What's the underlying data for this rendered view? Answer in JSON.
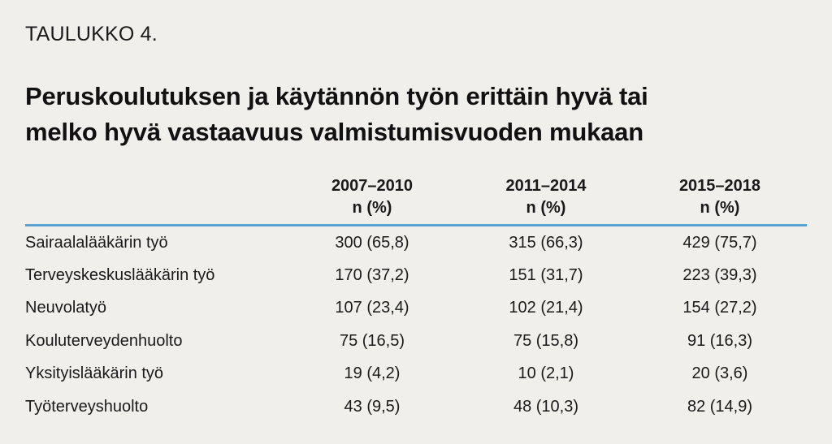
{
  "label": "TAULUKKO 4.",
  "title_line1": "Peruskoulutuksen ja käytännön työn erittäin hyvä tai",
  "title_line2": "melko hyvä vastaavuus valmistumisvuoden mukaan",
  "header": {
    "col1": {
      "period": "2007–2010",
      "unit": "n (%)"
    },
    "col2": {
      "period": "2011–2014",
      "unit": "n (%)"
    },
    "col3": {
      "period": "2015–2018",
      "unit": "n (%)"
    }
  },
  "rows": [
    {
      "label": "Sairaalalääkärin työ",
      "v1": "300 (65,8)",
      "v2": "315 (66,3)",
      "v3": "429 (75,7)"
    },
    {
      "label": "Terveyskeskuslääkärin työ",
      "v1": "170 (37,2)",
      "v2": "151 (31,7)",
      "v3": "223 (39,3)"
    },
    {
      "label": "Neuvolatyö",
      "v1": "107 (23,4)",
      "v2": "102 (21,4)",
      "v3": "154 (27,2)"
    },
    {
      "label": "Kouluterveydenhuolto",
      "v1": "75 (16,5)",
      "v2": "75 (15,8)",
      "v3": "91 (16,3)"
    },
    {
      "label": "Yksityislääkärin työ",
      "v1": "19 (4,2)",
      "v2": "10 (2,1)",
      "v3": "20 (3,6)"
    },
    {
      "label": "Työterveyshuolto",
      "v1": "43 (9,5)",
      "v2": "48 (10,3)",
      "v3": "82 (14,9)"
    }
  ],
  "colors": {
    "background": "#f0efeb",
    "header_rule": "#5aa2d4",
    "text": "#1a1a1a"
  }
}
